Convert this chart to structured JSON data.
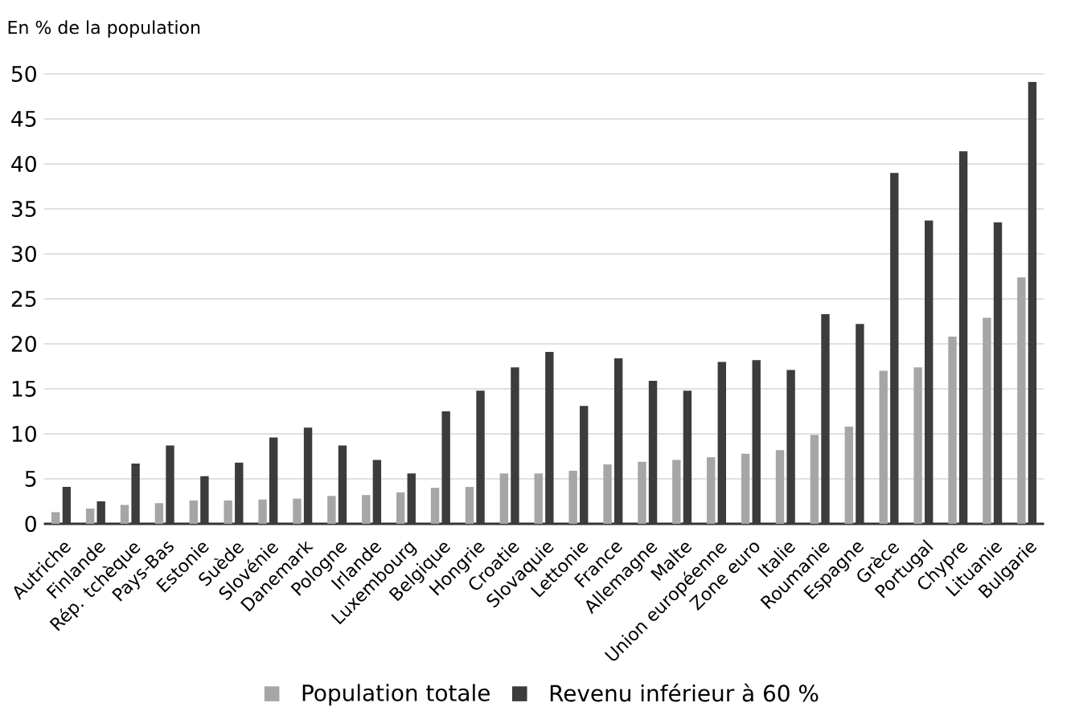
{
  "chart_data": {
    "type": "bar",
    "annotations": [
      "En % de la population"
    ],
    "categories": [
      "Autriche",
      "Finlande",
      "Rép. tchèque",
      "Pays-Bas",
      "Estonie",
      "Suède",
      "Slovénie",
      "Danemark",
      "Pologne",
      "Irlande",
      "Luxembourg",
      "Belgique",
      "Hongrie",
      "Croatie",
      "Slovaquie",
      "Lettonie",
      "France",
      "Allemagne",
      "Malte",
      "Union européenne",
      "Zone euro",
      "Italie",
      "Roumanie",
      "Espagne",
      "Grèce",
      "Portugal",
      "Chypre",
      "Lituanie",
      "Bulgarie"
    ],
    "series": [
      {
        "name": "Population totale",
        "color": "#a6a6a8",
        "values": [
          1.3,
          1.7,
          2.1,
          2.3,
          2.6,
          2.6,
          2.7,
          2.8,
          3.1,
          3.2,
          3.5,
          4.0,
          4.1,
          5.6,
          5.6,
          5.9,
          6.6,
          6.9,
          7.1,
          7.4,
          7.8,
          8.2,
          9.9,
          10.8,
          17.0,
          17.4,
          20.8,
          22.9,
          27.4
        ]
      },
      {
        "name": "Revenu inférieur à 60 %",
        "color": "#3c3c3c",
        "values": [
          4.1,
          2.5,
          6.7,
          8.7,
          5.3,
          6.8,
          9.6,
          10.7,
          8.7,
          7.1,
          5.6,
          12.5,
          14.8,
          17.4,
          19.1,
          13.1,
          18.4,
          15.9,
          14.8,
          18.0,
          18.2,
          17.1,
          23.3,
          22.2,
          39.0,
          33.7,
          41.4,
          33.5,
          49.1
        ]
      }
    ],
    "ylim": [
      0,
      50
    ],
    "yticks": [
      0,
      5,
      10,
      15,
      20,
      25,
      30,
      35,
      40,
      45,
      50
    ],
    "grid": "y",
    "legend": "bottom"
  }
}
